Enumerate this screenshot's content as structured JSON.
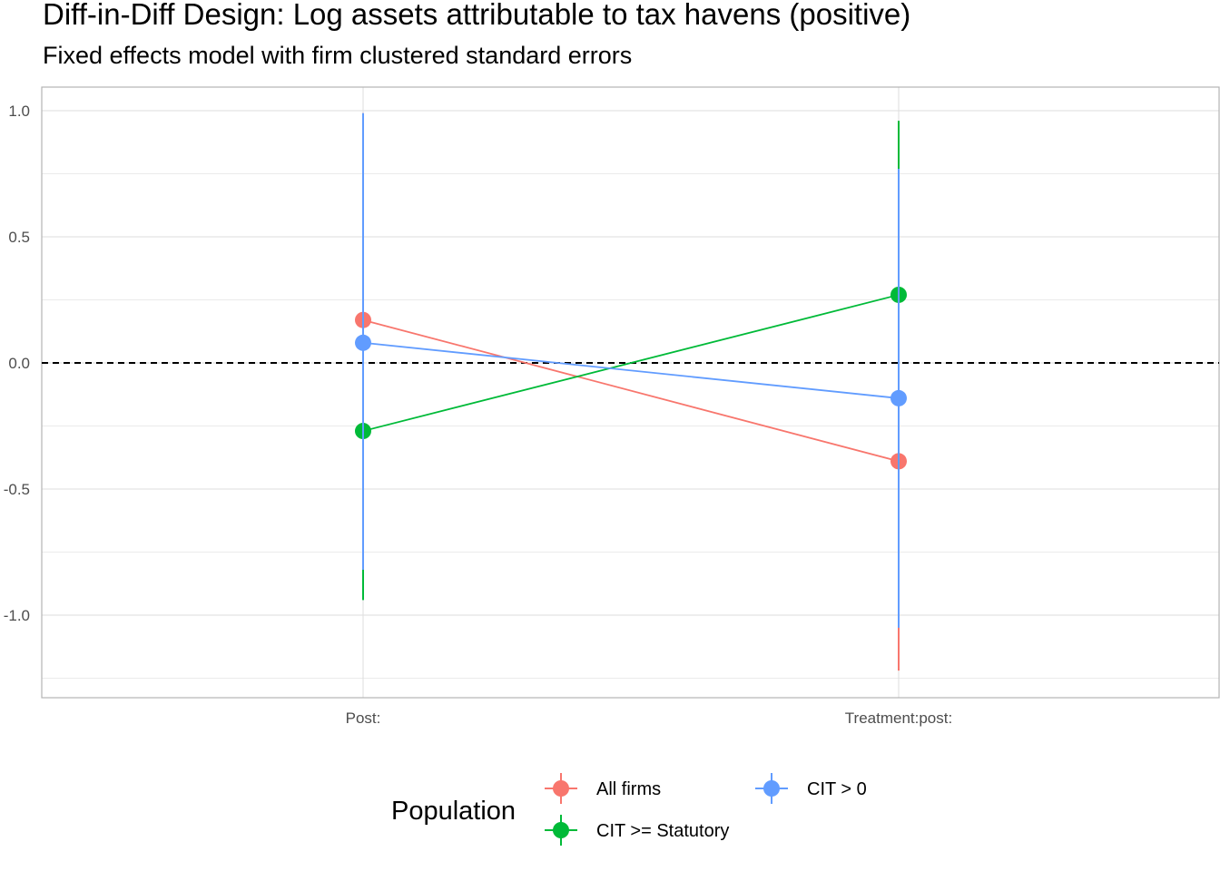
{
  "chart_data": {
    "type": "line",
    "title": "Diff-in-Diff Design: Log assets attributable to tax havens (positive)",
    "subtitle": "Fixed effects model with firm clustered standard errors",
    "categories": [
      "Post:",
      "Treatment:post:"
    ],
    "ylim": [
      -1.25,
      1.0
    ],
    "yticks": [
      1.0,
      0.5,
      0.0,
      -0.5,
      -1.0
    ],
    "ytick_labels": [
      "1.0",
      "0.5",
      "0.0",
      "-0.5",
      "-1.0"
    ],
    "reference_line": {
      "y": 0,
      "style": "dashed"
    },
    "grid": true,
    "legend": {
      "title": "Population",
      "position": "bottom"
    },
    "series": [
      {
        "name": "All firms",
        "color": "#F8766D",
        "values": [
          0.17,
          -0.39
        ],
        "lower": [
          -0.65,
          -1.22
        ],
        "upper": [
          0.99,
          0.44
        ]
      },
      {
        "name": "CIT >= Statutory",
        "color": "#00BA38",
        "values": [
          -0.27,
          0.27
        ],
        "lower": [
          -0.94,
          -0.42
        ],
        "upper": [
          0.4,
          0.96
        ]
      },
      {
        "name": "CIT > 0",
        "color": "#619CFF",
        "values": [
          0.08,
          -0.14
        ],
        "lower": [
          -0.82,
          -1.05
        ],
        "upper": [
          0.99,
          0.77
        ]
      }
    ]
  }
}
